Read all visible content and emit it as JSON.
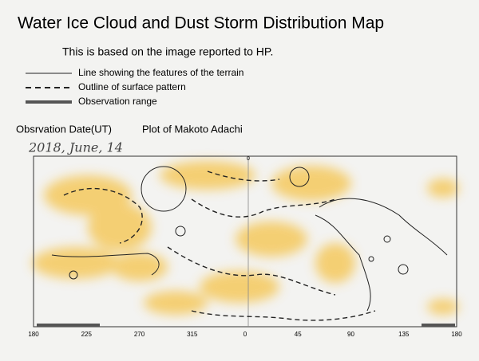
{
  "header": {
    "title": "Water Ice Cloud and Dust Storm Distribution Map",
    "subtitle": "This is based on the image reported to HP."
  },
  "legend": [
    {
      "label": "Line showing the features of the terrain"
    },
    {
      "label": "Outline of surface pattern"
    },
    {
      "label": "Observation range"
    }
  ],
  "observation": {
    "date_label": "Obsrvation Date(UT)",
    "plotter": "Plot of Makoto Adachi",
    "date": "2018, June, 14"
  },
  "map": {
    "top_label": "0",
    "longitude_labels": [
      "180",
      "225",
      "270",
      "315",
      "0",
      "45",
      "90",
      "135",
      "180"
    ]
  }
}
